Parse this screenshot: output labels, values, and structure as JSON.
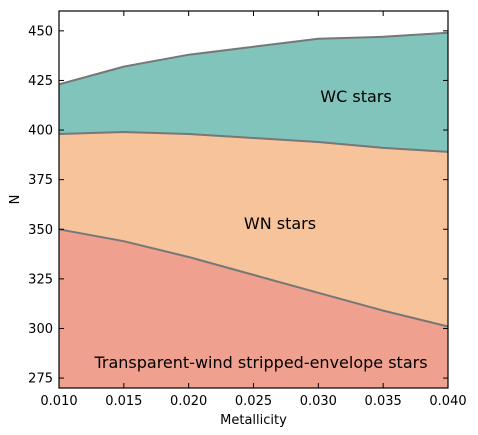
{
  "chart_data": {
    "type": "area",
    "xlabel": "Metallicity",
    "ylabel": "N",
    "xlim": [
      0.01,
      0.04
    ],
    "ylim": [
      270,
      460
    ],
    "x_ticks": [
      "0.010",
      "0.015",
      "0.020",
      "0.025",
      "0.030",
      "0.035",
      "0.040"
    ],
    "y_ticks": [
      "275",
      "300",
      "325",
      "350",
      "375",
      "400",
      "425",
      "450"
    ],
    "x": [
      0.01,
      0.015,
      0.02,
      0.025,
      0.03,
      0.035,
      0.04
    ],
    "series": [
      {
        "name": "Transparent-wind stripped-envelope stars",
        "values": [
          350,
          344,
          336,
          327,
          318,
          309,
          301
        ],
        "color": "#f0a08e"
      },
      {
        "name": "WN stars",
        "values": [
          398,
          399,
          398,
          396,
          394,
          391,
          389
        ],
        "color": "#f7c39a"
      },
      {
        "name": "WC stars",
        "values": [
          423,
          432,
          438,
          442,
          446,
          447,
          449
        ],
        "color": "#80c4bb"
      }
    ],
    "boundary_color": "#777777"
  }
}
